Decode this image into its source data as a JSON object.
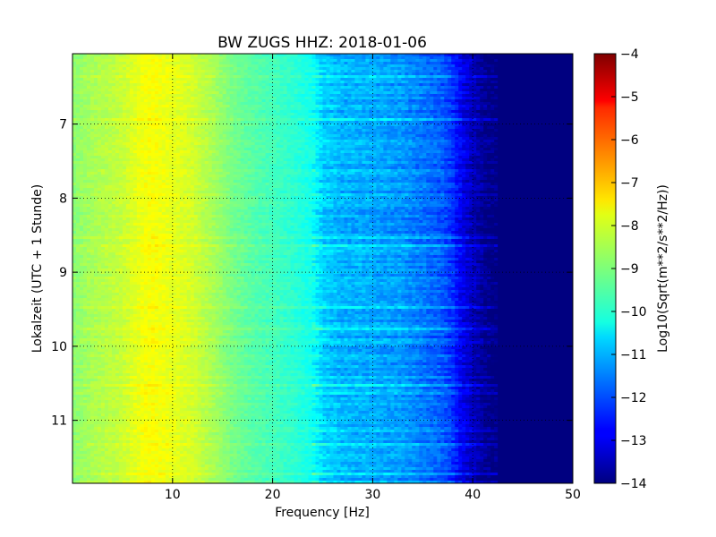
{
  "chart_data": {
    "type": "heatmap",
    "title": "BW ZUGS HHZ: 2018-01-06",
    "xlabel": "Frequency [Hz]",
    "ylabel": "Lokalzeit (UTC + 1 Stunde)",
    "colorbar_label": "Log10(Sqrt(m**2/s**2/Hz))",
    "xlim": [
      0,
      50
    ],
    "ylim": [
      6.05,
      11.85
    ],
    "y_inverted": true,
    "x_ticks": [
      10,
      20,
      30,
      40,
      50
    ],
    "x_tick_labels": [
      "10",
      "20",
      "30",
      "40",
      "50"
    ],
    "y_ticks": [
      7,
      8,
      9,
      10,
      11
    ],
    "y_tick_labels": [
      "7",
      "8",
      "9",
      "10",
      "11"
    ],
    "clim": [
      -14,
      -4
    ],
    "colorbar_ticks": [
      -4,
      -5,
      -6,
      -7,
      -8,
      -9,
      -10,
      -11,
      -12,
      -13,
      -14
    ],
    "colorbar_tick_labels": [
      "−4",
      "−5",
      "−6",
      "−7",
      "−8",
      "−9",
      "−10",
      "−11",
      "−12",
      "−13",
      "−14"
    ],
    "colormap": "jet",
    "grid": true,
    "frequency_profile": {
      "frequency_hz": [
        0,
        2,
        5,
        7,
        8,
        9,
        10,
        12,
        14,
        16,
        18,
        20,
        22,
        24,
        25,
        27,
        30,
        33,
        35,
        37,
        38,
        39,
        40,
        41,
        42,
        45,
        50
      ],
      "log_psd": [
        -8.9,
        -8.6,
        -8.3,
        -7.9,
        -7.8,
        -7.9,
        -8.0,
        -8.2,
        -8.6,
        -9.1,
        -9.4,
        -9.6,
        -9.8,
        -10.1,
        -10.7,
        -11.0,
        -11.1,
        -11.3,
        -11.6,
        -11.9,
        -12.3,
        -13.0,
        -13.4,
        -13.8,
        -14.0,
        -14.0,
        -14.0
      ]
    }
  }
}
